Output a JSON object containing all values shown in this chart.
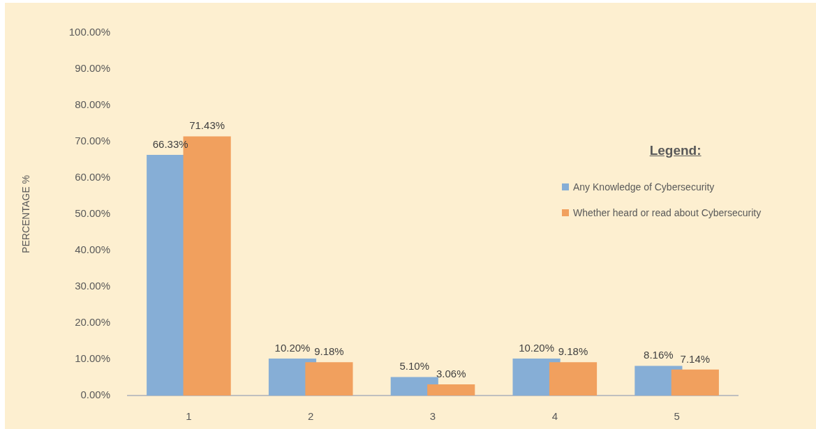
{
  "chart_data": {
    "type": "bar",
    "categories": [
      "1",
      "2",
      "3",
      "4",
      "5"
    ],
    "series": [
      {
        "name": "Any Knowledge of Cybersecurity",
        "color": "#86aed6",
        "values": [
          66.33,
          10.2,
          5.1,
          10.2,
          8.16
        ],
        "value_labels": [
          "66.33%",
          "10.20%",
          "5.10%",
          "10.20%",
          "8.16%"
        ]
      },
      {
        "name": "Whether heard or read about Cybersecurity",
        "color": "#f1a05e",
        "values": [
          71.43,
          9.18,
          3.06,
          9.18,
          7.14
        ],
        "value_labels": [
          "71.43%",
          "9.18%",
          "3.06%",
          "9.18%",
          "7.14%"
        ]
      }
    ],
    "ylabel": "PERCENTAGE %",
    "legend_title": "Legend:",
    "legend": "right",
    "grid": false,
    "ylim": [
      0,
      100
    ],
    "yticks": [
      {
        "value": 0,
        "label": "0.00%"
      },
      {
        "value": 10,
        "label": "10.00%"
      },
      {
        "value": 20,
        "label": "20.00%"
      },
      {
        "value": 30,
        "label": "30.00%"
      },
      {
        "value": 40,
        "label": "40.00%"
      },
      {
        "value": 50,
        "label": "50.00%"
      },
      {
        "value": 60,
        "label": "60.00%"
      },
      {
        "value": 70,
        "label": "70.00%"
      },
      {
        "value": 80,
        "label": "80.00%"
      },
      {
        "value": 90,
        "label": "90.00%"
      },
      {
        "value": 100,
        "label": "100.00%"
      }
    ]
  }
}
